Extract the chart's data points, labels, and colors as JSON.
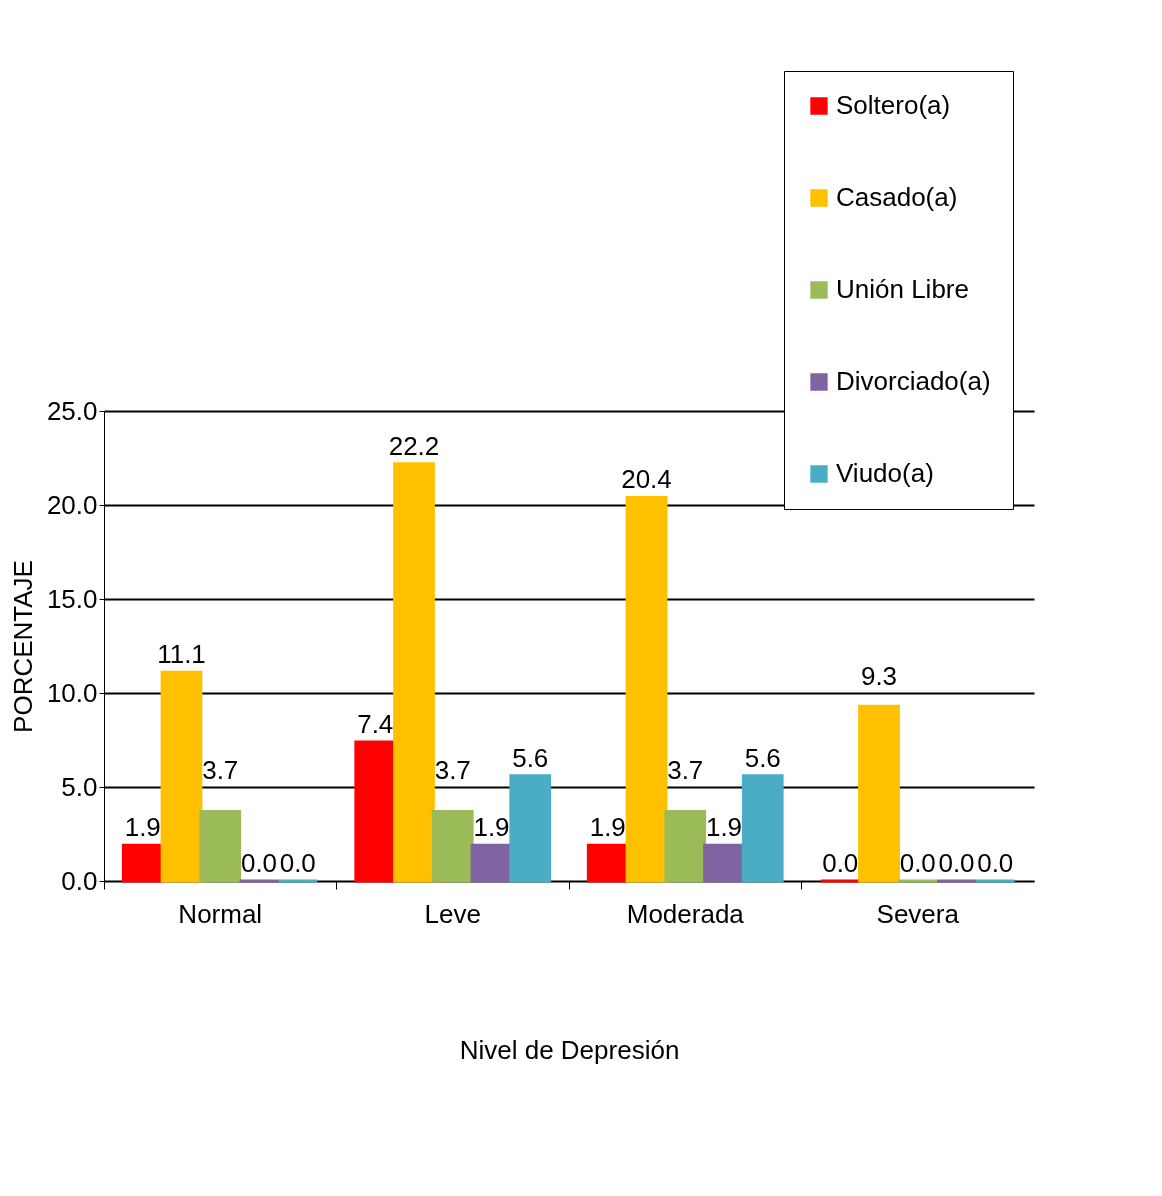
{
  "chart_data": {
    "type": "bar",
    "xlabel": "Nivel de Depresión",
    "ylabel": "PORCENTAJE",
    "categories": [
      "Normal",
      "Leve",
      "Moderada",
      "Severa"
    ],
    "series": [
      {
        "name": "Soltero(a)",
        "color": "#ff0000",
        "values": [
          1.9,
          7.4,
          1.9,
          0.0
        ],
        "value_labels": [
          "1.9",
          "7.4",
          "1.9",
          "0.0"
        ]
      },
      {
        "name": "Casado(a)",
        "color": "#ffc000",
        "values": [
          11.1,
          22.2,
          20.4,
          9.3
        ],
        "value_labels": [
          "11.1",
          "22.2",
          "20.4",
          "9.3"
        ]
      },
      {
        "name": "Unión Libre",
        "color": "#9bbb59",
        "values": [
          3.7,
          3.7,
          3.7,
          0.0
        ],
        "value_labels": [
          "3.7",
          "3.7",
          "3.7",
          "0.0"
        ]
      },
      {
        "name": "Divorciado(a)",
        "color": "#8064a2",
        "values": [
          0.0,
          1.9,
          1.9,
          0.0
        ],
        "value_labels": [
          "0.0",
          "1.9",
          "1.9",
          "0.0"
        ]
      },
      {
        "name": "Viudo(a)",
        "color": "#4bacc6",
        "values": [
          0.0,
          5.6,
          5.6,
          0.0
        ],
        "value_labels": [
          "0.0",
          "5.6",
          "5.6",
          "0.0"
        ]
      }
    ],
    "ylim": [
      0,
      25
    ],
    "yticks": [
      {
        "value": 0,
        "label": "0.0"
      },
      {
        "value": 5,
        "label": "5.0"
      },
      {
        "value": 10,
        "label": "10.0"
      },
      {
        "value": 15,
        "label": "15.0"
      },
      {
        "value": 20,
        "label": "20.0"
      },
      {
        "value": 25,
        "label": "25.0"
      }
    ],
    "grid": "y",
    "legend": "top right"
  }
}
